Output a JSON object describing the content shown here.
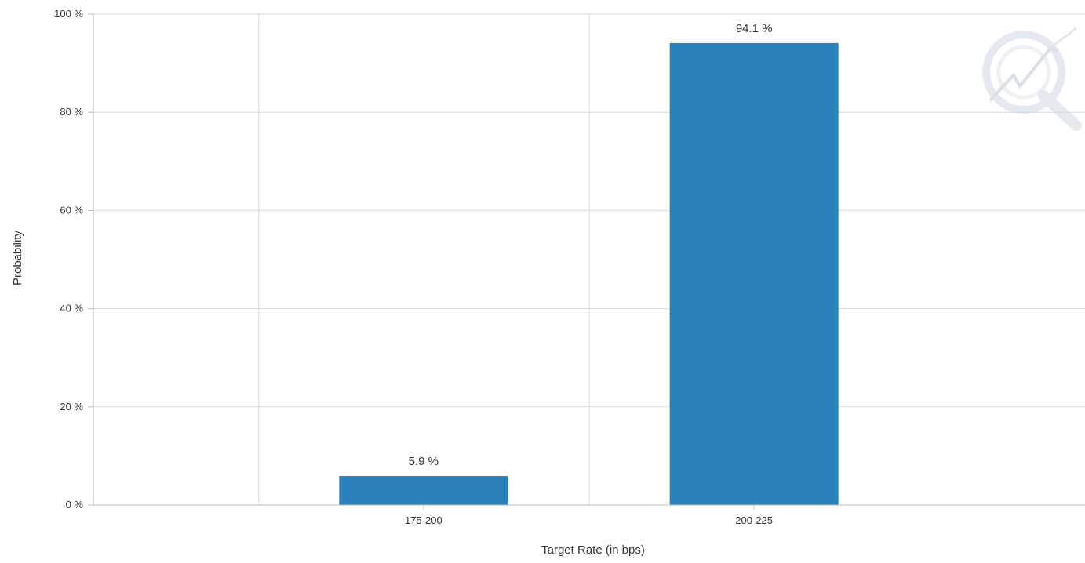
{
  "chart_data": {
    "type": "bar",
    "title": "",
    "xlabel": "Target Rate (in bps)",
    "ylabel": "Probability",
    "categories": [
      "175-200",
      "200-225"
    ],
    "values": [
      5.9,
      94.1
    ],
    "value_labels": [
      "5.9 %",
      "94.1 %"
    ],
    "ylim": [
      0,
      100
    ],
    "yticks": [
      0,
      20,
      40,
      60,
      80,
      100
    ],
    "ytick_labels": [
      "0 %",
      "20 %",
      "40 %",
      "60 %",
      "80 %",
      "100 %"
    ],
    "grid": true,
    "legend": "none",
    "bar_color": "#2a80b9",
    "grid_color": "#d9d9d9",
    "axis_color": "#bfbfbf"
  },
  "watermark": {
    "icon": "logo-watermark-icon",
    "color": "#cfd8e3"
  }
}
